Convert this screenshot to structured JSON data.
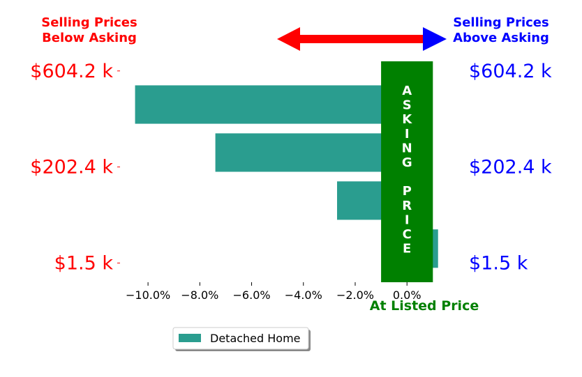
{
  "header": {
    "left_line1": "Selling Prices",
    "left_line2": "Below Asking",
    "right_line1": "Selling Prices",
    "right_line2": "Above Asking",
    "left_color": "#ff0000",
    "right_color": "#0000ff"
  },
  "asking_band": {
    "letters_top": [
      "A",
      "S",
      "K",
      "I",
      "N",
      "G"
    ],
    "letters_bottom": [
      "P",
      "R",
      "I",
      "C",
      "E"
    ],
    "color": "#008000",
    "x_range": [
      -1.0,
      1.0
    ]
  },
  "at_listed_label": "At Listed Price",
  "legend": {
    "label": "Detached Home",
    "color": "#2a9d8f"
  },
  "chart_data": {
    "type": "bar",
    "orientation": "horizontal",
    "xlim": [
      -11.0,
      1.8
    ],
    "xticks": [
      -10,
      -8,
      -6,
      -4,
      -2,
      0
    ],
    "xtick_labels": [
      "−10.0%",
      "−8.0%",
      "−6.0%",
      "−4.0%",
      "−2.0%",
      "0.0%"
    ],
    "y_ticks": [
      {
        "pos": 3.2,
        "left_label": "$604.2 k",
        "right_label": "$604.2 k"
      },
      {
        "pos": 1.2,
        "left_label": "$202.4 k",
        "right_label": "$202.4 k"
      },
      {
        "pos": -0.8,
        "left_label": "$1.5 k",
        "right_label": "$1.5 k"
      }
    ],
    "ylim": [
      -1.2,
      3.4
    ],
    "series": [
      {
        "name": "Detached Home",
        "color": "#2a9d8f",
        "bars": [
          {
            "y": 2.5,
            "value": -10.5
          },
          {
            "y": 1.5,
            "value": -7.4
          },
          {
            "y": 0.5,
            "value": -2.7
          },
          {
            "y": -0.5,
            "value": 1.2
          }
        ]
      }
    ]
  }
}
